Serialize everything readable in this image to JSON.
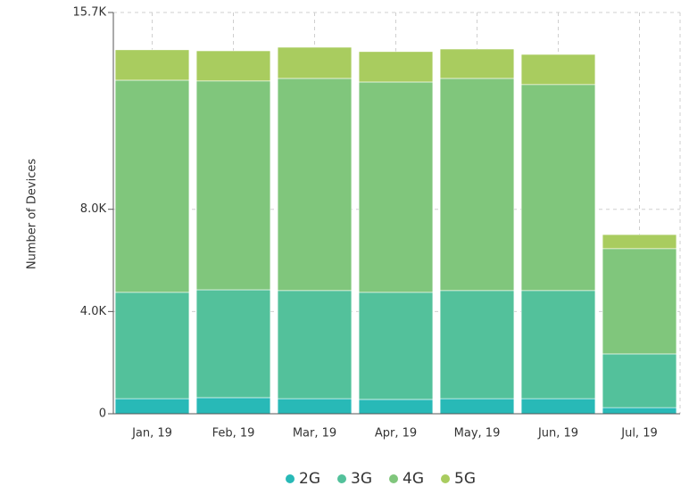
{
  "chart_data": {
    "type": "stacked_bar",
    "y_label": "Number of Devices",
    "categories": [
      "Jan, 19",
      "Feb, 19",
      "Mar, 19",
      "Apr, 19",
      "May, 19",
      "Jun, 19",
      "Jul, 19"
    ],
    "series": [
      {
        "name": "2G",
        "color": "#28b9b7",
        "values": [
          590,
          630,
          590,
          560,
          590,
          590,
          240
        ]
      },
      {
        "name": "3G",
        "color": "#53c19b",
        "values": [
          4160,
          4220,
          4230,
          4190,
          4230,
          4230,
          2100
        ]
      },
      {
        "name": "4G",
        "color": "#80c67c",
        "values": [
          8300,
          8170,
          8300,
          8230,
          8300,
          8060,
          4120
        ]
      },
      {
        "name": "5G",
        "color": "#a9cc5f",
        "values": [
          1190,
          1180,
          1220,
          1190,
          1150,
          1180,
          550
        ]
      }
    ],
    "ylim": [
      0,
      15700
    ],
    "yticks": [
      0,
      {
        "value": 4000,
        "label": "4.0K"
      },
      {
        "value": 8000,
        "label": "8.0K"
      },
      {
        "value": 15700,
        "label": "15.7K"
      }
    ],
    "grid": true,
    "legend": "bottom"
  }
}
